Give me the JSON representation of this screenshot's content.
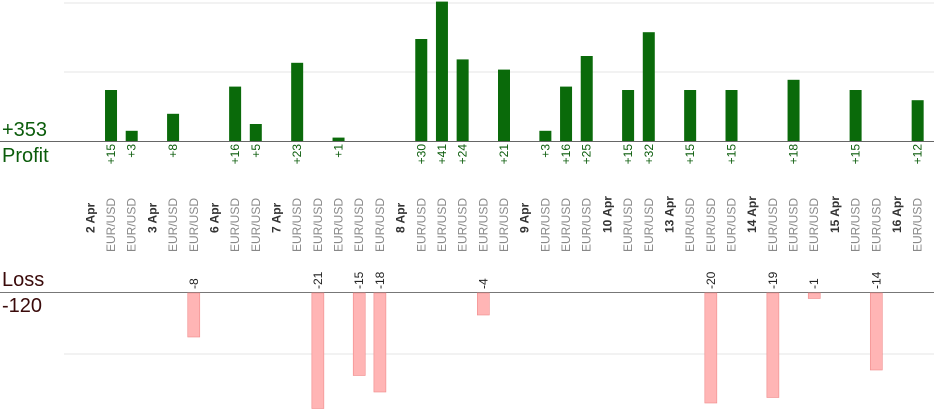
{
  "profit_total": "+353",
  "profit_label": "Profit",
  "loss_label": "Loss",
  "loss_total": "-120",
  "colors": {
    "profit_bar": "#0a6a0a",
    "loss_bar": "#ffb5b5",
    "profit_text": "#0b5c0b",
    "loss_text": "#222222",
    "date_text": "#333333",
    "symbol_text": "#888888"
  },
  "chart_data": {
    "type": "bar",
    "title": "",
    "xlabel": "",
    "ylabel": "",
    "grid": true,
    "dates": [
      "2 Apr",
      "3 Apr",
      "6 Apr",
      "7 Apr",
      "8 Apr",
      "9 Apr",
      "10 Apr",
      "13 Apr",
      "14 Apr",
      "15 Apr",
      "16 Apr"
    ],
    "trades": [
      {
        "date": "2 Apr",
        "symbol": "EUR/USD",
        "value": 15
      },
      {
        "date": "2 Apr",
        "symbol": "EUR/USD",
        "value": 3
      },
      {
        "date": "3 Apr",
        "symbol": "EUR/USD",
        "value": 8
      },
      {
        "date": "3 Apr",
        "symbol": "EUR/USD",
        "value": -8
      },
      {
        "date": "6 Apr",
        "symbol": "EUR/USD",
        "value": 16
      },
      {
        "date": "6 Apr",
        "symbol": "EUR/USD",
        "value": 5
      },
      {
        "date": "7 Apr",
        "symbol": "EUR/USD",
        "value": 23
      },
      {
        "date": "7 Apr",
        "symbol": "EUR/USD",
        "value": -21
      },
      {
        "date": "7 Apr",
        "symbol": "EUR/USD",
        "value": 1
      },
      {
        "date": "7 Apr",
        "symbol": "EUR/USD",
        "value": -15
      },
      {
        "date": "7 Apr",
        "symbol": "EUR/USD",
        "value": -18
      },
      {
        "date": "8 Apr",
        "symbol": "EUR/USD",
        "value": 30
      },
      {
        "date": "8 Apr",
        "symbol": "EUR/USD",
        "value": 41
      },
      {
        "date": "8 Apr",
        "symbol": "EUR/USD",
        "value": 24
      },
      {
        "date": "8 Apr",
        "symbol": "EUR/USD",
        "value": -4
      },
      {
        "date": "8 Apr",
        "symbol": "EUR/USD",
        "value": 21
      },
      {
        "date": "9 Apr",
        "symbol": "EUR/USD",
        "value": 3
      },
      {
        "date": "9 Apr",
        "symbol": "EUR/USD",
        "value": 16
      },
      {
        "date": "9 Apr",
        "symbol": "EUR/USD",
        "value": 25
      },
      {
        "date": "10 Apr",
        "symbol": "EUR/USD",
        "value": 15
      },
      {
        "date": "10 Apr",
        "symbol": "EUR/USD",
        "value": 32
      },
      {
        "date": "13 Apr",
        "symbol": "EUR/USD",
        "value": 15
      },
      {
        "date": "13 Apr",
        "symbol": "EUR/USD",
        "value": -20
      },
      {
        "date": "13 Apr",
        "symbol": "EUR/USD",
        "value": 15
      },
      {
        "date": "14 Apr",
        "symbol": "EUR/USD",
        "value": -19
      },
      {
        "date": "14 Apr",
        "symbol": "EUR/USD",
        "value": 18
      },
      {
        "date": "14 Apr",
        "symbol": "EUR/USD",
        "value": -1
      },
      {
        "date": "15 Apr",
        "symbol": "EUR/USD",
        "value": 15
      },
      {
        "date": "15 Apr",
        "symbol": "EUR/USD",
        "value": -14
      },
      {
        "date": "16 Apr",
        "symbol": "EUR/USD",
        "value": 12
      }
    ]
  }
}
